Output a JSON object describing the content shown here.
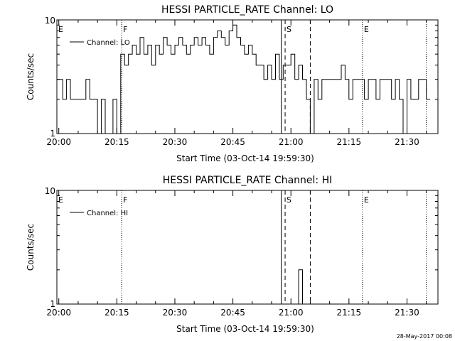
{
  "footer": {
    "timestamp": "28-May-2017 00:08"
  },
  "chart_data": [
    {
      "type": "line",
      "title": "HESSI PARTICLE_RATE Channel: LO",
      "xlabel": "Start Time (03-Oct-14 19:59:30)",
      "ylabel": "Counts/sec",
      "y_scale": "log",
      "ylim": [
        1,
        10
      ],
      "y_ticks": [
        "1",
        "10"
      ],
      "x_ticks": [
        "20:00",
        "20:15",
        "20:30",
        "20:45",
        "21:00",
        "21:15",
        "21:30"
      ],
      "legend": {
        "position": "top-left",
        "entries": [
          "Channel: LO"
        ]
      },
      "markers": [
        {
          "label": "E",
          "time": "19:59:30",
          "style": "none"
        },
        {
          "label": "F",
          "time": "20:16:15",
          "style": "dotted"
        },
        {
          "label": "",
          "time": "20:57:30",
          "style": "solid"
        },
        {
          "label": "S",
          "time": "20:58:30",
          "style": "dashed"
        },
        {
          "label": "",
          "time": "21:05:00",
          "style": "dashed"
        },
        {
          "label": "E",
          "time": "21:18:30",
          "style": "dotted"
        },
        {
          "label": "",
          "time": "21:35:00",
          "style": "dotted"
        }
      ],
      "series": [
        {
          "name": "Channel: LO",
          "x": [
            "19:59:30",
            "20:00:00",
            "20:01:00",
            "20:02:00",
            "20:03:00",
            "20:04:00",
            "20:05:00",
            "20:06:00",
            "20:07:00",
            "20:08:00",
            "20:09:00",
            "20:10:00",
            "20:11:00",
            "20:12:00",
            "20:13:00",
            "20:14:00",
            "20:15:00",
            "20:16:00",
            "20:17:00",
            "20:18:00",
            "20:19:00",
            "20:20:00",
            "20:21:00",
            "20:22:00",
            "20:23:00",
            "20:24:00",
            "20:25:00",
            "20:26:00",
            "20:27:00",
            "20:28:00",
            "20:29:00",
            "20:30:00",
            "20:31:00",
            "20:32:00",
            "20:33:00",
            "20:34:00",
            "20:35:00",
            "20:36:00",
            "20:37:00",
            "20:38:00",
            "20:39:00",
            "20:40:00",
            "20:41:00",
            "20:42:00",
            "20:43:00",
            "20:44:00",
            "20:45:00",
            "20:46:00",
            "20:47:00",
            "20:48:00",
            "20:49:00",
            "20:50:00",
            "20:51:00",
            "20:52:00",
            "20:53:00",
            "20:54:00",
            "20:55:00",
            "20:56:00",
            "20:57:00",
            "20:58:00",
            "20:59:00",
            "21:00:00",
            "21:01:00",
            "21:02:00",
            "21:03:00",
            "21:04:00",
            "21:05:00",
            "21:06:00",
            "21:07:00",
            "21:08:00",
            "21:09:00",
            "21:10:00",
            "21:11:00",
            "21:12:00",
            "21:13:00",
            "21:14:00",
            "21:15:00",
            "21:16:00",
            "21:17:00",
            "21:18:00",
            "21:19:00",
            "21:20:00",
            "21:21:00",
            "21:22:00",
            "21:23:00",
            "21:24:00",
            "21:25:00",
            "21:26:00",
            "21:27:00",
            "21:28:00",
            "21:29:00",
            "21:30:00",
            "21:31:00",
            "21:32:00",
            "21:33:00",
            "21:34:00",
            "21:35:00"
          ],
          "values": [
            3,
            3,
            2,
            3,
            2,
            2,
            2,
            2,
            3,
            2,
            2,
            1,
            2,
            1,
            1,
            2,
            1,
            5,
            4,
            5,
            6,
            5,
            7,
            5,
            6,
            4,
            6,
            5,
            7,
            6,
            5,
            6,
            7,
            6,
            5,
            6,
            7,
            6,
            7,
            6,
            5,
            7,
            8,
            7,
            6,
            8,
            9,
            7,
            6,
            5,
            6,
            5,
            4,
            4,
            3,
            4,
            3,
            5,
            3,
            4,
            4,
            5,
            3,
            4,
            3,
            2,
            1,
            3,
            2,
            3,
            3,
            3,
            3,
            3,
            4,
            3,
            2,
            3,
            3,
            3,
            2,
            3,
            3,
            2,
            3,
            3,
            3,
            2,
            3,
            2,
            1,
            3,
            2,
            2,
            3,
            3,
            2
          ]
        }
      ]
    },
    {
      "type": "line",
      "title": "HESSI PARTICLE_RATE Channel: HI",
      "xlabel": "Start Time (03-Oct-14 19:59:30)",
      "ylabel": "Counts/sec",
      "y_scale": "log",
      "ylim": [
        1,
        10
      ],
      "y_ticks": [
        "1",
        "10"
      ],
      "x_ticks": [
        "20:00",
        "20:15",
        "20:30",
        "20:45",
        "21:00",
        "21:15",
        "21:30"
      ],
      "legend": {
        "position": "top-left",
        "entries": [
          "Channel: HI"
        ]
      },
      "markers": [
        {
          "label": "E",
          "time": "19:59:30",
          "style": "none"
        },
        {
          "label": "F",
          "time": "20:16:15",
          "style": "dotted"
        },
        {
          "label": "",
          "time": "20:57:30",
          "style": "solid"
        },
        {
          "label": "S",
          "time": "20:58:30",
          "style": "dashed"
        },
        {
          "label": "",
          "time": "21:05:00",
          "style": "dashed"
        },
        {
          "label": "E",
          "time": "21:18:30",
          "style": "dotted"
        },
        {
          "label": "",
          "time": "21:35:00",
          "style": "dotted"
        }
      ],
      "series": [
        {
          "name": "Channel: HI",
          "x": [
            "20:59:00",
            "21:00:00",
            "21:01:00",
            "21:02:00",
            "21:03:00",
            "21:04:00"
          ],
          "values": [
            1,
            1,
            1,
            2,
            1,
            1
          ]
        }
      ]
    }
  ]
}
